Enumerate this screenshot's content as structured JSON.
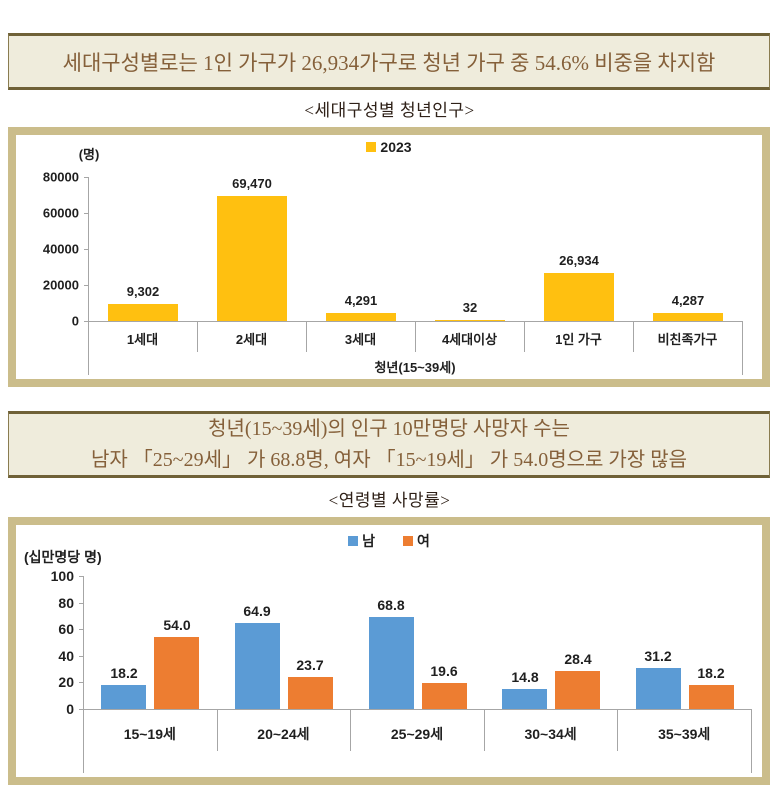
{
  "page": {
    "header1": "세대구성별로는 1인 가구가 26,934가구로 청년 가구 중 54.6% 비중을 차지함",
    "subtitle1": "<세대구성별 청년인구>",
    "header2_line1": "청년(15~39세)의 인구 10만명당 사망자 수는",
    "header2_line2": "남자 「25~29세」 가 68.8명, 여자 「15~19세」 가 54.0명으로 가장 많음",
    "subtitle2": "<연령별 사망률>"
  },
  "colors": {
    "panel_border": "#cbbd8b",
    "header_bg": "#efecdc",
    "header_border": "#6f6137",
    "header_text": "#85603a",
    "axis_grey": "#a6a6a6",
    "gold": "#ffc010",
    "blue": "#5b9bd5",
    "orange": "#ed7d31"
  },
  "chart_data": [
    {
      "type": "bar",
      "title": "세대구성별 청년인구",
      "unit_label": "(명)",
      "categories": [
        "1세대",
        "2세대",
        "3세대",
        "4세대이상",
        "1인 가구",
        "비친족가구"
      ],
      "series": [
        {
          "name": "2023",
          "color": "#ffc010",
          "values": [
            9302,
            69470,
            4291,
            32,
            26934,
            4287
          ],
          "labels": [
            "9,302",
            "69,470",
            "4,291",
            "32",
            "26,934",
            "4,287"
          ]
        }
      ],
      "group_label": "청년(15~39세)",
      "ylim": [
        0,
        80000
      ],
      "yticks": [
        "80000",
        "60000",
        "40000",
        "20000",
        "0"
      ],
      "legend_position": "top-center",
      "grid": "off"
    },
    {
      "type": "bar",
      "title": "연령별 사망률",
      "unit_label": "(십만명당 명)",
      "categories": [
        "15~19세",
        "20~24세",
        "25~29세",
        "30~34세",
        "35~39세"
      ],
      "series": [
        {
          "name": "남",
          "color": "#5b9bd5",
          "values": [
            18.2,
            64.9,
            68.8,
            14.8,
            31.2
          ],
          "labels": [
            "18.2",
            "64.9",
            "68.8",
            "14.8",
            "31.2"
          ]
        },
        {
          "name": "여",
          "color": "#ed7d31",
          "values": [
            54.0,
            23.7,
            19.6,
            28.4,
            18.2
          ],
          "labels": [
            "54.0",
            "23.7",
            "19.6",
            "28.4",
            "18.2"
          ]
        }
      ],
      "group_label": "",
      "ylim": [
        0,
        100
      ],
      "yticks": [
        "100",
        "80",
        "60",
        "40",
        "20",
        "0"
      ],
      "legend_position": "top-center",
      "grid": "off"
    }
  ]
}
